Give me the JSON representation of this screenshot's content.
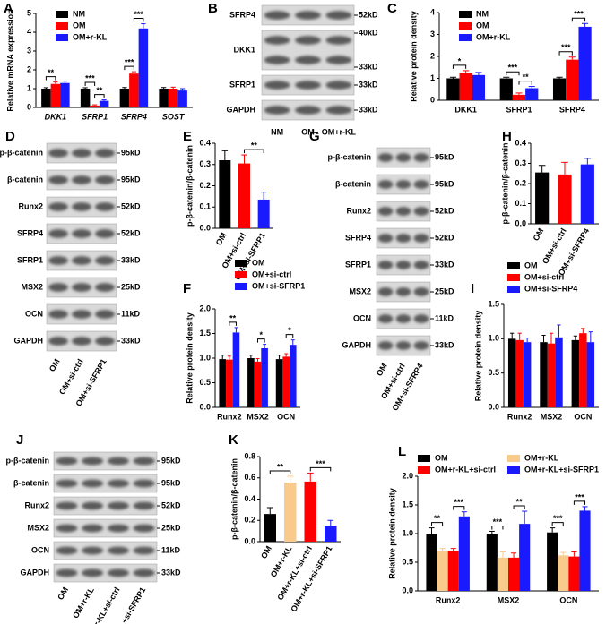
{
  "chart_data": [
    {
      "type": "bar",
      "panel": "A",
      "ylabel": "Relative mRNA expression",
      "categories": [
        "DKK1",
        "SFRP1",
        "SFRP4",
        "SOST"
      ],
      "series": [
        {
          "name": "NM",
          "color": "#000000",
          "values": [
            1.0,
            1.0,
            1.0,
            1.0
          ],
          "errors": [
            0.05,
            0.05,
            0.06,
            0.06
          ]
        },
        {
          "name": "OM",
          "color": "#ff0000",
          "values": [
            1.25,
            0.1,
            1.8,
            1.0
          ],
          "errors": [
            0.1,
            0.04,
            0.1,
            0.08
          ]
        },
        {
          "name": "OM+r-KL",
          "color": "#1a1aff",
          "values": [
            1.3,
            0.35,
            4.2,
            0.9
          ],
          "errors": [
            0.1,
            0.05,
            0.25,
            0.1
          ]
        }
      ],
      "ylim": [
        0,
        5
      ],
      "yticks": [
        0,
        1,
        2,
        3,
        4,
        5
      ],
      "annotations": [
        {
          "text": "**",
          "category": 0,
          "between": [
            0,
            1
          ]
        },
        {
          "text": "***",
          "category": 1,
          "between": [
            0,
            1
          ]
        },
        {
          "text": "**",
          "category": 1,
          "between": [
            1,
            2
          ]
        },
        {
          "text": "***",
          "category": 2,
          "between": [
            0,
            1
          ]
        },
        {
          "text": "***",
          "category": 2,
          "between": [
            1,
            2
          ]
        }
      ]
    },
    {
      "type": "blot",
      "panel": "B",
      "rows": [
        {
          "name": "SFRP4",
          "markers": [
            "52kD"
          ]
        },
        {
          "name": "DKK1",
          "markers": [
            "40kD",
            "33kD"
          ]
        },
        {
          "name": "SFRP1",
          "markers": [
            "33kD"
          ]
        },
        {
          "name": "GAPDH",
          "markers": [
            "33kD"
          ]
        }
      ],
      "lanes": [
        "NM",
        "OM",
        "OM+r-KL"
      ]
    },
    {
      "type": "bar",
      "panel": "C",
      "ylabel": "Relative protein density",
      "categories": [
        "DKK1",
        "SFRP1",
        "SFRP4"
      ],
      "series": [
        {
          "name": "NM",
          "color": "#000000",
          "values": [
            1.0,
            1.0,
            1.0
          ],
          "errors": [
            0.05,
            0.05,
            0.05
          ]
        },
        {
          "name": "OM",
          "color": "#ff0000",
          "values": [
            1.25,
            0.25,
            1.85
          ],
          "errors": [
            0.1,
            0.08,
            0.12
          ]
        },
        {
          "name": "OM+r-KL",
          "color": "#1a1aff",
          "values": [
            1.15,
            0.55,
            3.35
          ],
          "errors": [
            0.12,
            0.08,
            0.15
          ]
        }
      ],
      "ylim": [
        0,
        4
      ],
      "yticks": [
        0,
        1,
        2,
        3,
        4
      ],
      "annotations": [
        {
          "text": "*",
          "category": 0,
          "between": [
            0,
            1
          ]
        },
        {
          "text": "***",
          "category": 1,
          "between": [
            0,
            1
          ]
        },
        {
          "text": "**",
          "category": 1,
          "between": [
            1,
            2
          ]
        },
        {
          "text": "***",
          "category": 2,
          "between": [
            0,
            1
          ]
        },
        {
          "text": "***",
          "category": 2,
          "between": [
            1,
            2
          ]
        }
      ]
    },
    {
      "type": "blot",
      "panel": "D",
      "rows": [
        {
          "name": "p-β-catenin",
          "markers": [
            "95kD"
          ]
        },
        {
          "name": "β-catenin",
          "markers": [
            "95kD"
          ]
        },
        {
          "name": "Runx2",
          "markers": [
            "52kD"
          ]
        },
        {
          "name": "SFRP4",
          "markers": [
            "52kD"
          ]
        },
        {
          "name": "SFRP1",
          "markers": [
            "33kD"
          ]
        },
        {
          "name": "MSX2",
          "markers": [
            "25kD"
          ]
        },
        {
          "name": "OCN",
          "markers": [
            "11kD"
          ]
        },
        {
          "name": "GAPDH",
          "markers": [
            "33kD"
          ]
        }
      ],
      "lanes": [
        "OM",
        "OM+si-ctrl",
        "OM+si-SFRP1"
      ]
    },
    {
      "type": "bar",
      "panel": "E",
      "ylabel": "p-β-catenin/β-catenin",
      "categories": [
        "OM",
        "OM+si-ctrl",
        "OM+si-SFRP1"
      ],
      "values": [
        0.32,
        0.305,
        0.135
      ],
      "errors": [
        0.045,
        0.04,
        0.035
      ],
      "colors": [
        "#000000",
        "#ff0000",
        "#1a1aff"
      ],
      "ylim": [
        0,
        0.4
      ],
      "yticks": [
        {
          "value": 0,
          "label": "0.0"
        },
        0.1,
        0.2,
        0.3,
        0.4
      ],
      "annotations": [
        {
          "text": "**",
          "between": [
            1,
            2
          ]
        }
      ]
    },
    {
      "type": "bar",
      "panel": "F",
      "ylabel": "Relative protein density",
      "categories": [
        "Runx2",
        "MSX2",
        "OCN"
      ],
      "series": [
        {
          "name": "OM",
          "color": "#000000",
          "values": [
            0.98,
            1.0,
            0.98
          ],
          "errors": [
            0.08,
            0.06,
            0.08
          ]
        },
        {
          "name": "OM+si-ctrl",
          "color": "#ff0000",
          "values": [
            0.97,
            0.93,
            1.03
          ],
          "errors": [
            0.07,
            0.06,
            0.06
          ]
        },
        {
          "name": "OM+si-SFRP1",
          "color": "#1a1aff",
          "values": [
            1.52,
            1.2,
            1.27
          ],
          "errors": [
            0.1,
            0.08,
            0.1
          ]
        }
      ],
      "ylim": [
        0,
        2
      ],
      "yticks": [
        {
          "value": 0,
          "label": "0.0"
        },
        0.5,
        {
          "value": 1,
          "label": "1.0"
        },
        1.5,
        {
          "value": 2,
          "label": "2.0"
        }
      ],
      "annotations": [
        {
          "text": "**",
          "category": 0,
          "between": [
            1,
            2
          ]
        },
        {
          "text": "*",
          "category": 1,
          "between": [
            1,
            2
          ]
        },
        {
          "text": "*",
          "category": 2,
          "between": [
            1,
            2
          ]
        }
      ]
    },
    {
      "type": "blot",
      "panel": "G",
      "rows": [
        {
          "name": "p-β-catenin",
          "markers": [
            "95kD"
          ]
        },
        {
          "name": "β-catenin",
          "markers": [
            "95kD"
          ]
        },
        {
          "name": "Runx2",
          "markers": [
            "52kD"
          ]
        },
        {
          "name": "SFRP4",
          "markers": [
            "52kD"
          ]
        },
        {
          "name": "SFRP1",
          "markers": [
            "33kD"
          ]
        },
        {
          "name": "MSX2",
          "markers": [
            "25kD"
          ]
        },
        {
          "name": "OCN",
          "markers": [
            "11kD"
          ]
        },
        {
          "name": "GAPDH",
          "markers": [
            "33kD"
          ]
        }
      ],
      "lanes": [
        "OM",
        "OM+si-ctrl",
        "OM+si-SFRP4"
      ]
    },
    {
      "type": "bar",
      "panel": "H",
      "ylabel": "p-β-catenin/β-catenin",
      "categories": [
        "OM",
        "OM+si-ctrl",
        "OM+si-SFRP4"
      ],
      "values": [
        0.255,
        0.245,
        0.295
      ],
      "errors": [
        0.035,
        0.06,
        0.03
      ],
      "colors": [
        "#000000",
        "#ff0000",
        "#1a1aff"
      ],
      "ylim": [
        0,
        0.4
      ],
      "yticks": [
        {
          "value": 0,
          "label": "0.0"
        },
        0.1,
        0.2,
        0.3,
        0.4
      ],
      "annotations": []
    },
    {
      "type": "bar",
      "panel": "I",
      "ylabel": "Relative protein density",
      "categories": [
        "Runx2",
        "MSX2",
        "OCN"
      ],
      "series": [
        {
          "name": "OM",
          "color": "#000000",
          "values": [
            1.0,
            0.95,
            0.98
          ],
          "errors": [
            0.08,
            0.1,
            0.06
          ]
        },
        {
          "name": "OM+si-ctrl",
          "color": "#ff0000",
          "values": [
            0.98,
            0.93,
            1.08
          ],
          "errors": [
            0.1,
            0.15,
            0.07
          ]
        },
        {
          "name": "OM+si-SFRP4",
          "color": "#1a1aff",
          "values": [
            0.95,
            1.02,
            0.95
          ],
          "errors": [
            0.06,
            0.18,
            0.15
          ]
        }
      ],
      "ylim": [
        0,
        1.5
      ],
      "yticks": [
        {
          "value": 0,
          "label": "0.0"
        },
        0.5,
        {
          "value": 1,
          "label": "1.0"
        },
        1.5
      ],
      "annotations": []
    },
    {
      "type": "blot",
      "panel": "J",
      "rows": [
        {
          "name": "p-β-catenin",
          "markers": [
            "95kD"
          ]
        },
        {
          "name": "β-catenin",
          "markers": [
            "95kD"
          ]
        },
        {
          "name": "Runx2",
          "markers": [
            "52kD"
          ]
        },
        {
          "name": "MSX2",
          "markers": [
            "25kD"
          ]
        },
        {
          "name": "OCN",
          "markers": [
            "11kD"
          ]
        },
        {
          "name": "GAPDH",
          "markers": [
            "33kD"
          ]
        }
      ],
      "lanes": [
        "OM",
        "OM+r-KL",
        "OM+r-KL+si-ctrl",
        "OM+r-KL+si-SFRP1"
      ]
    },
    {
      "type": "bar",
      "panel": "K",
      "ylabel": "p-β-catenin/β-catenin",
      "categories": [
        "OM",
        "OM+r-KL",
        "OM+r-KL+si-ctrl",
        "OM+r-KL+si-SFRP1"
      ],
      "values": [
        0.26,
        0.555,
        0.565,
        0.15
      ],
      "errors": [
        0.06,
        0.06,
        0.08,
        0.05
      ],
      "colors": [
        "#000000",
        "#f8cb8c",
        "#ff0000",
        "#1a1aff"
      ],
      "ylim": [
        0,
        0.8
      ],
      "yticks": [
        {
          "value": 0,
          "label": "0.0"
        },
        0.2,
        0.4,
        0.6,
        0.8
      ],
      "annotations": [
        {
          "text": "**",
          "between": [
            0,
            1
          ]
        },
        {
          "text": "***",
          "between": [
            2,
            3
          ]
        }
      ]
    },
    {
      "type": "bar",
      "panel": "L",
      "ylabel": "Relative protein density",
      "categories": [
        "Runx2",
        "MSX2",
        "OCN"
      ],
      "series": [
        {
          "name": "OM",
          "color": "#000000",
          "values": [
            1.0,
            1.0,
            1.02
          ],
          "errors": [
            0.1,
            0.04,
            0.08
          ]
        },
        {
          "name": "OM+r-KL",
          "color": "#f8cb8c",
          "values": [
            0.7,
            0.58,
            0.62
          ],
          "errors": [
            0.04,
            0.1,
            0.05
          ]
        },
        {
          "name": "OM+r-KL+si-ctrl",
          "color": "#ff0000",
          "values": [
            0.7,
            0.58,
            0.6
          ],
          "errors": [
            0.04,
            0.08,
            0.08
          ]
        },
        {
          "name": "OM+r-KL+si-SFRP1",
          "color": "#1a1aff",
          "values": [
            1.3,
            1.17,
            1.4
          ],
          "errors": [
            0.08,
            0.22,
            0.07
          ]
        }
      ],
      "ylim": [
        0,
        2
      ],
      "yticks": [
        {
          "value": 0,
          "label": "0.0"
        },
        0.5,
        {
          "value": 1,
          "label": "1.0"
        },
        1.5,
        {
          "value": 2,
          "label": "2.0"
        }
      ],
      "annotations": [
        {
          "text": "**",
          "category": 0,
          "between": [
            0,
            1
          ]
        },
        {
          "text": "***",
          "category": 0,
          "between": [
            2,
            3
          ]
        },
        {
          "text": "***",
          "category": 1,
          "between": [
            0,
            1
          ]
        },
        {
          "text": "**",
          "category": 1,
          "between": [
            2,
            3
          ]
        },
        {
          "text": "***",
          "category": 2,
          "between": [
            0,
            1
          ]
        },
        {
          "text": "***",
          "category": 2,
          "between": [
            2,
            3
          ]
        }
      ]
    }
  ]
}
